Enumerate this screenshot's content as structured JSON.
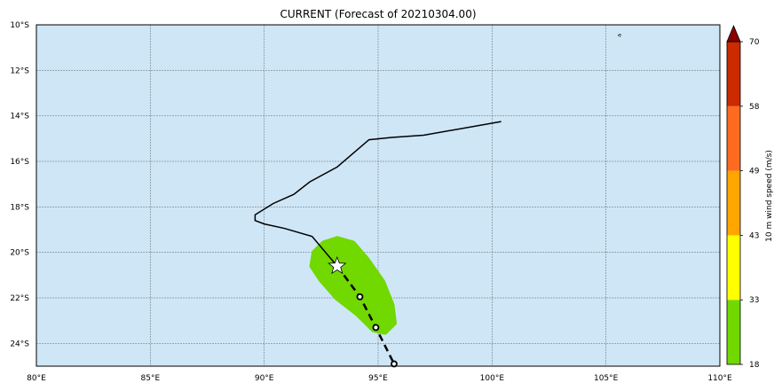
{
  "title": "CURRENT (Forecast of 20210304.00)",
  "map": {
    "lon_range": [
      80,
      110
    ],
    "lat_range": [
      -25,
      -10
    ],
    "ocean_color": "#cfe6f6",
    "grid": true,
    "x_ticks": [
      {
        "value": 80,
        "label": "80°E"
      },
      {
        "value": 85,
        "label": "85°E"
      },
      {
        "value": 90,
        "label": "90°E"
      },
      {
        "value": 95,
        "label": "95°E"
      },
      {
        "value": 100,
        "label": "100°E"
      },
      {
        "value": 105,
        "label": "105°E"
      },
      {
        "value": 110,
        "label": "110°E"
      }
    ],
    "y_ticks": [
      {
        "value": -10,
        "label": "10°S"
      },
      {
        "value": -12,
        "label": "12°S"
      },
      {
        "value": -14,
        "label": "14°S"
      },
      {
        "value": -16,
        "label": "16°S"
      },
      {
        "value": -18,
        "label": "18°S"
      },
      {
        "value": -20,
        "label": "20°S"
      },
      {
        "value": -22,
        "label": "22°S"
      },
      {
        "value": -24,
        "label": "24°S"
      }
    ],
    "small_island_marker": {
      "lon": 105.6,
      "lat": -10.45
    }
  },
  "chart_data": {
    "type": "line",
    "past_track": [
      [
        100.4,
        -14.25
      ],
      [
        97.0,
        -14.85
      ],
      [
        95.6,
        -14.95
      ],
      [
        94.6,
        -15.05
      ],
      [
        93.2,
        -16.25
      ],
      [
        92.0,
        -16.9
      ],
      [
        91.3,
        -17.45
      ],
      [
        90.4,
        -17.85
      ],
      [
        89.6,
        -18.35
      ],
      [
        89.6,
        -18.6
      ],
      [
        90.0,
        -18.75
      ],
      [
        90.9,
        -18.95
      ],
      [
        92.1,
        -19.3
      ],
      [
        93.2,
        -20.6
      ]
    ],
    "current_position": [
      93.2,
      -20.6
    ],
    "forecast_track": [
      [
        93.2,
        -20.6
      ],
      [
        94.2,
        -21.95
      ],
      [
        94.9,
        -23.3
      ],
      [
        95.7,
        -24.9
      ]
    ],
    "forecast_points": [
      [
        94.2,
        -21.95
      ],
      [
        94.9,
        -23.3
      ],
      [
        95.7,
        -24.9
      ]
    ],
    "wind_swath": {
      "level": "18-33",
      "color": "#71d800",
      "polygon": [
        [
          92.2,
          -20.0
        ],
        [
          92.6,
          -19.6
        ],
        [
          93.2,
          -19.4
        ],
        [
          93.9,
          -19.6
        ],
        [
          94.5,
          -20.3
        ],
        [
          95.2,
          -21.3
        ],
        [
          95.6,
          -22.3
        ],
        [
          95.7,
          -23.1
        ],
        [
          95.3,
          -23.5
        ],
        [
          94.8,
          -23.4
        ],
        [
          94.1,
          -22.7
        ],
        [
          93.2,
          -22.0
        ],
        [
          92.5,
          -21.2
        ],
        [
          92.1,
          -20.6
        ]
      ]
    }
  },
  "colorbar": {
    "label": "10 m wind speed (m/s)",
    "levels": [
      18,
      33,
      43,
      49,
      58,
      70
    ],
    "tick_labels": [
      "18",
      "33",
      "43",
      "49",
      "58",
      "70"
    ],
    "colors": [
      "#71d800",
      "#ffff00",
      "#ffa500",
      "#ff6a21",
      "#cc2a00"
    ],
    "extend_color": "#8b0000"
  }
}
